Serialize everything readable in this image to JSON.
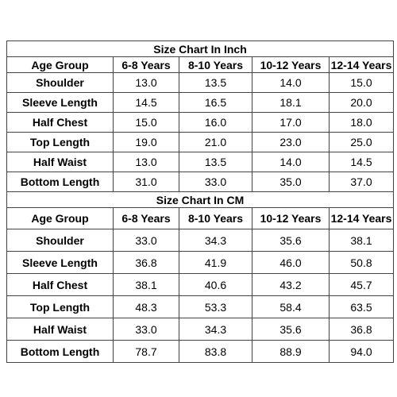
{
  "tables": [
    {
      "title": "Size Chart In Inch",
      "headers": [
        "Age Group",
        "6-8 Years",
        "8-10 Years",
        "10-12 Years",
        "12-14 Years"
      ],
      "rows": [
        {
          "label": "Shoulder",
          "values": [
            "13.0",
            "13.5",
            "14.0",
            "15.0"
          ]
        },
        {
          "label": "Sleeve Length",
          "values": [
            "14.5",
            "16.5",
            "18.1",
            "20.0"
          ]
        },
        {
          "label": "Half Chest",
          "values": [
            "15.0",
            "16.0",
            "17.0",
            "18.0"
          ]
        },
        {
          "label": "Top Length",
          "values": [
            "19.0",
            "21.0",
            "23.0",
            "25.0"
          ]
        },
        {
          "label": "Half Waist",
          "values": [
            "13.0",
            "13.5",
            "14.0",
            "14.5"
          ]
        },
        {
          "label": "Bottom Length",
          "values": [
            "31.0",
            "33.0",
            "35.0",
            "37.0"
          ]
        }
      ]
    },
    {
      "title": "Size Chart In CM",
      "headers": [
        "Age Group",
        "6-8 Years",
        "8-10 Years",
        "10-12 Years",
        "12-14 Years"
      ],
      "rows": [
        {
          "label": "Shoulder",
          "values": [
            "33.0",
            "34.3",
            "35.6",
            "38.1"
          ]
        },
        {
          "label": "Sleeve Length",
          "values": [
            "36.8",
            "41.9",
            "46.0",
            "50.8"
          ]
        },
        {
          "label": "Half Chest",
          "values": [
            "38.1",
            "40.6",
            "43.2",
            "45.7"
          ]
        },
        {
          "label": "Top Length",
          "values": [
            "48.3",
            "53.3",
            "58.4",
            "63.5"
          ]
        },
        {
          "label": "Half Waist",
          "values": [
            "33.0",
            "34.3",
            "35.6",
            "36.8"
          ]
        },
        {
          "label": "Bottom Length",
          "values": [
            "78.7",
            "83.8",
            "88.9",
            "94.0"
          ]
        }
      ]
    }
  ]
}
